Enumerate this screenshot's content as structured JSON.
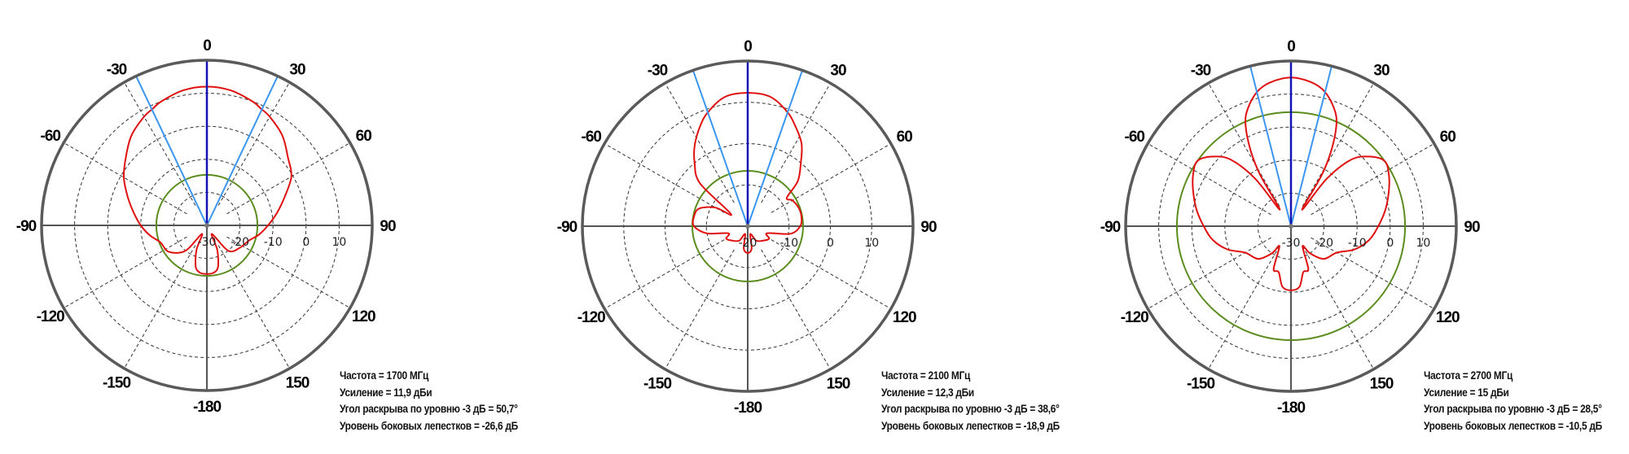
{
  "chart_data": [
    {
      "type": "polar",
      "angle_ticks": [
        "0",
        "30",
        "60",
        "90",
        "120",
        "150",
        "-180",
        "-150",
        "-120",
        "-90",
        "-60",
        "-30"
      ],
      "r_ticks": [
        "-30",
        "-20",
        "-10",
        "0",
        "10"
      ],
      "r_range": [
        -30,
        20
      ],
      "grid": true,
      "colors": {
        "pattern": "#e01010",
        "sidelobe": "#5b8c1e",
        "beam_edges": "#3a96f0",
        "boresight": "#1414b4",
        "frame": "#5a5a5a"
      },
      "pattern": {
        "angles": [
          -180,
          -172,
          -165,
          -157,
          -150,
          -140,
          -125,
          -110,
          -100,
          -90,
          -80,
          -70,
          -60,
          -50,
          -40,
          -30,
          -25,
          -20,
          -10,
          0,
          10,
          20,
          25,
          30,
          40,
          50,
          60,
          70,
          80,
          90,
          100,
          110,
          125,
          140,
          150,
          157,
          165,
          172
        ],
        "values": [
          -15.3,
          -15.5,
          -17,
          -22,
          -27,
          -20,
          -16,
          -15,
          -12.5,
          -10,
          -7.5,
          -4.5,
          -1,
          2,
          5.5,
          8,
          8.9,
          10,
          11.5,
          12,
          11.5,
          10,
          8.9,
          8,
          5.5,
          2,
          -0.5,
          -5,
          -8.5,
          -11.5,
          -14,
          -16.5,
          -18,
          -20,
          -27,
          -22,
          -17,
          -15.5
        ]
      },
      "sidelobe_level_dbi": -14.7,
      "beamwidth_deg": 50.7,
      "info": [
        "Частота = 1700 МГц",
        "Усиление = 11,9 дБи",
        "Угол раскрыва по уровню -3 дБ = 50,7°",
        "Уровень боковых лепестков = -26,6 дБ"
      ]
    },
    {
      "type": "polar",
      "angle_ticks": [
        "0",
        "30",
        "60",
        "90",
        "120",
        "150",
        "-180",
        "-150",
        "-120",
        "-90",
        "-60",
        "-30"
      ],
      "r_ticks": [
        "-20",
        "-10",
        "0",
        "10"
      ],
      "r_range": [
        -20,
        20
      ],
      "grid": true,
      "colors": {
        "pattern": "#e01010",
        "sidelobe": "#5b8c1e",
        "beam_edges": "#3a96f0",
        "boresight": "#1414b4",
        "frame": "#5a5a5a"
      },
      "pattern": {
        "angles": [
          -180,
          -170,
          -162,
          -150,
          -135,
          -120,
          -110,
          -100,
          -90,
          -80,
          -70,
          -60,
          -54,
          -48,
          -40,
          -33,
          -25,
          -19,
          -10,
          0,
          10,
          19,
          25,
          33,
          40,
          48,
          54,
          60,
          70,
          80,
          90,
          100,
          110,
          120,
          135,
          150,
          162,
          170
        ],
        "values": [
          -13.5,
          -14.5,
          -18,
          -16,
          -15,
          -14,
          -15,
          -10,
          -7,
          -6.8,
          -7.5,
          -11,
          -15,
          -4.5,
          0,
          3.5,
          7,
          9.3,
          11.8,
          12.3,
          11.8,
          9.3,
          7,
          3.9,
          0,
          -3.7,
          -8.3,
          -7.5,
          -6.9,
          -6.8,
          -7.3,
          -9.5,
          -15,
          -14,
          -15,
          -16,
          -18,
          -14.5
        ]
      },
      "sidelobe_level_dbi": -6.6,
      "beamwidth_deg": 38.6,
      "info": [
        "Частота = 2100 МГц",
        "Усиление = 12,3 дБи",
        "Угол раскрыва по уровню -3 дБ = 38,6°",
        "Уровень боковых лепестков = -18,9 дБ"
      ]
    },
    {
      "type": "polar",
      "angle_ticks": [
        "0",
        "30",
        "60",
        "90",
        "120",
        "150",
        "-180",
        "-150",
        "-120",
        "-90",
        "-60",
        "-30"
      ],
      "r_ticks": [
        "-30",
        "-20",
        "-10",
        "0",
        "10"
      ],
      "r_range": [
        -30,
        20
      ],
      "grid": true,
      "colors": {
        "pattern": "#e01010",
        "sidelobe": "#5b8c1e",
        "beam_edges": "#3a96f0",
        "boresight": "#1414b4",
        "frame": "#5a5a5a"
      },
      "pattern": {
        "angles": [
          -180,
          -172,
          -165,
          -158,
          -150,
          -145,
          -135,
          -120,
          -110,
          -100,
          -90,
          -80,
          -70,
          -62,
          -55,
          -48,
          -42,
          -37,
          -34,
          -31,
          -28,
          -24,
          -20,
          -14,
          -8,
          0,
          8,
          14,
          20,
          24,
          28,
          31,
          34,
          37,
          42,
          48,
          55,
          62,
          70,
          80,
          90,
          100,
          110,
          120,
          135,
          145,
          150,
          158,
          165,
          172
        ],
        "values": [
          -10.6,
          -11.5,
          -15.6,
          -16,
          -23,
          -20,
          -16,
          -14,
          -9.5,
          -6,
          -3.6,
          -1,
          1.5,
          3.5,
          4.5,
          1.5,
          -3,
          -12,
          -24,
          -12,
          -4,
          3.8,
          8,
          12,
          14,
          15,
          14,
          12,
          8,
          3.8,
          -4,
          -12,
          -24,
          -12,
          -3,
          1.5,
          4.5,
          3.5,
          1.5,
          -1,
          -3.6,
          -6,
          -9.5,
          -14,
          -16,
          -20,
          -23,
          -16,
          -15.6,
          -11.5
        ]
      },
      "sidelobe_level_dbi": 4.5,
      "beamwidth_deg": 28.5,
      "info": [
        "Частота = 2700 МГц",
        "Усиление = 15 дБи",
        "Угол раскрыва по уровню -3 дБ = 28,5°",
        "Уровень боковых лепестков = -10,5 дБ"
      ]
    }
  ]
}
